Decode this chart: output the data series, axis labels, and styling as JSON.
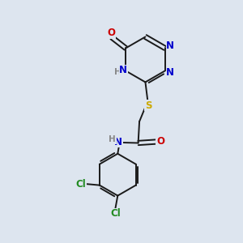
{
  "background_color": "#dde5ef",
  "bond_color": "#1a1a1a",
  "atom_colors": {
    "N": "#0000cc",
    "O": "#cc0000",
    "S": "#ccaa00",
    "Cl": "#228B22",
    "NH": "#2266cc"
  },
  "lw": 1.4
}
